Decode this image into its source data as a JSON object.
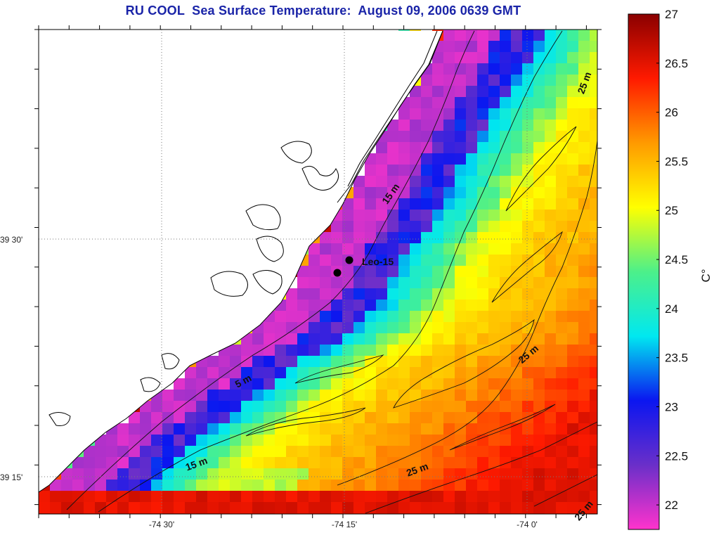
{
  "title": "RU COOL  Sea Surface Temperature:  August 09, 2006 0639 GMT",
  "colorbar": {
    "unit": "C°",
    "tick_labels": [
      "22",
      "22.5",
      "23",
      "23.5",
      "24",
      "24.5",
      "25",
      "25.5",
      "26",
      "26.5",
      "27"
    ],
    "min": 21.75,
    "max": 27,
    "stops": [
      "#ff33cc",
      "#6a2fc9",
      "#0b16f0",
      "#00e8f0",
      "#4cf08a",
      "#ffff00",
      "#ff9a00",
      "#ff1a00",
      "#8a0000"
    ]
  },
  "axes": {
    "lat_labels": [
      "39 30'",
      "39 15'"
    ],
    "lon_labels": [
      "-74 30'",
      "-74 15'",
      "-74 0'"
    ]
  },
  "contours": {
    "labels": [
      "5 m",
      "15 m",
      "15 m",
      "25 m",
      "25 m",
      "25 m",
      "25 m"
    ]
  },
  "station": {
    "name": "Leo-15"
  },
  "colors": {
    "title": "#1a24a8",
    "coast": "#000000",
    "land": "#ffffff"
  }
}
